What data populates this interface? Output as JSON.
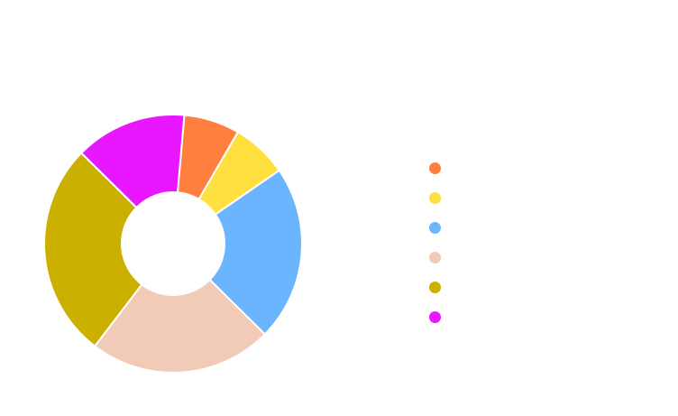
{
  "chart_data": {
    "type": "pie",
    "variant": "donut",
    "title": "",
    "legend_position": "right",
    "series": [
      {
        "name": "",
        "value": 7,
        "color": "#ff7f3f"
      },
      {
        "name": "",
        "value": 7,
        "color": "#ffe03f"
      },
      {
        "name": "",
        "value": 22,
        "color": "#6bb5ff"
      },
      {
        "name": "",
        "value": 23,
        "color": "#f2cab8"
      },
      {
        "name": "",
        "value": 27,
        "color": "#ccb000"
      },
      {
        "name": "",
        "value": 14,
        "color": "#e817ff"
      }
    ]
  }
}
